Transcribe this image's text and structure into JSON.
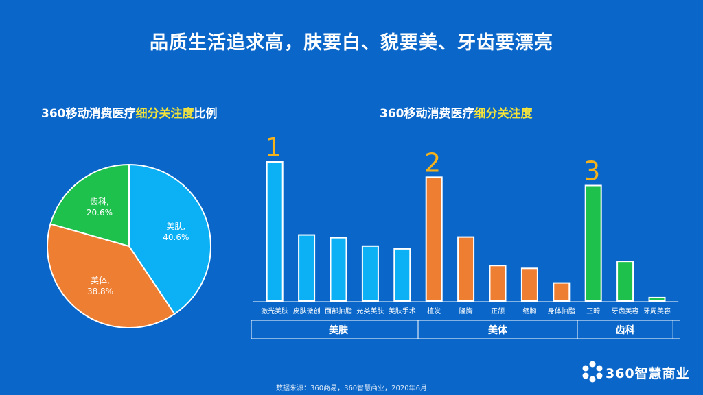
{
  "page": {
    "title": "品质生活追求高，肤要白、貌要美、牙齿要漂亮",
    "source_note": "数据来源：360商易，360智慧商业，2020年6月",
    "logo_text": "360智慧商业"
  },
  "colors": {
    "background": "#0A67C9",
    "beauty": "#0BB0F5",
    "body": "#EE7E31",
    "dental": "#1DC14B",
    "highlight": "#F4E33A",
    "rank_number": "#F5B21A"
  },
  "pie_title": {
    "prefix": "360移动消费医疗",
    "highlight": "细分关注度",
    "suffix": "比例"
  },
  "bar_title": {
    "prefix": "360移动消费医疗",
    "highlight": "细分关注度"
  },
  "chart_data": [
    {
      "type": "pie",
      "title": "360移动消费医疗细分关注度比例",
      "slices": [
        {
          "label": "美肤,",
          "value": 40.6,
          "value_label": "40.6%",
          "color": "#0BB0F5"
        },
        {
          "label": "美体,",
          "value": 38.8,
          "value_label": "38.8%",
          "color": "#EE7E31"
        },
        {
          "label": "齿科,",
          "value": 20.6,
          "value_label": "20.6%",
          "color": "#1DC14B"
        }
      ]
    },
    {
      "type": "bar",
      "title": "360移动消费医疗细分关注度",
      "categories": [
        "激光美肤",
        "皮肤微创",
        "面部抽脂",
        "光类美肤",
        "美肤手术",
        "植发",
        "隆胸",
        "正颌",
        "缩胸",
        "身体抽脂",
        "正畸",
        "牙齿美容",
        "牙周美容"
      ],
      "values": [
        100,
        47.5,
        45.5,
        39.5,
        37.5,
        89,
        46,
        25.5,
        23.5,
        13,
        83,
        28.5,
        2.5
      ],
      "groups": [
        {
          "name": "美肤",
          "start": 0,
          "end": 4,
          "color": "#0BB0F5"
        },
        {
          "name": "美体",
          "start": 5,
          "end": 9,
          "color": "#EE7E31"
        },
        {
          "name": "齿科",
          "start": 10,
          "end": 12,
          "color": "#1DC14B"
        }
      ],
      "rank_labels": [
        {
          "index": 0,
          "text": "1"
        },
        {
          "index": 5,
          "text": "2"
        },
        {
          "index": 10,
          "text": "3"
        }
      ],
      "ylim": [
        0,
        100
      ],
      "axes_visible": false,
      "grid": false
    }
  ]
}
